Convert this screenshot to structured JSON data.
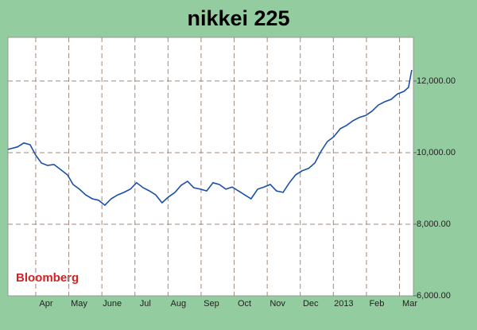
{
  "chart_data": {
    "type": "line",
    "title": "nikkei 225",
    "annotation": "Bloomberg",
    "x": [
      3.16,
      3.45,
      3.64,
      3.83,
      4.0,
      4.17,
      4.36,
      4.55,
      4.75,
      4.96,
      5.13,
      5.32,
      5.51,
      5.71,
      5.9,
      6.09,
      6.28,
      6.48,
      6.67,
      6.86,
      7.05,
      7.25,
      7.44,
      7.63,
      7.82,
      8.01,
      8.21,
      8.4,
      8.59,
      8.78,
      8.98,
      9.17,
      9.36,
      9.55,
      9.75,
      9.94,
      10.13,
      10.32,
      10.51,
      10.71,
      10.9,
      11.09,
      11.28,
      11.48,
      11.67,
      11.86,
      12.05,
      12.25,
      12.44,
      12.63,
      12.82,
      13.01,
      13.21,
      13.4,
      13.59,
      13.78,
      13.98,
      14.17,
      14.36,
      14.55,
      14.75,
      14.94,
      15.13,
      15.27,
      15.37
    ],
    "series": [
      {
        "name": "Nikkei 225",
        "color": "#1a4fa8",
        "values": [
          10090,
          10160,
          10270,
          10220,
          9930,
          9710,
          9640,
          9670,
          9530,
          9380,
          9110,
          8980,
          8820,
          8710,
          8670,
          8530,
          8710,
          8820,
          8890,
          8980,
          9160,
          9020,
          8930,
          8820,
          8600,
          8760,
          8890,
          9090,
          9200,
          9020,
          8980,
          8930,
          9160,
          9110,
          8980,
          9040,
          8930,
          8820,
          8710,
          8980,
          9040,
          9110,
          8930,
          8890,
          9160,
          9380,
          9490,
          9560,
          9710,
          10040,
          10310,
          10440,
          10670,
          10760,
          10890,
          10980,
          11040,
          11160,
          11330,
          11420,
          11490,
          11640,
          11710,
          11820,
          12310
        ]
      }
    ],
    "xlim": [
      3.16,
      15.42
    ],
    "xticks": [
      {
        "value": 4,
        "label": "Apr"
      },
      {
        "value": 5,
        "label": "May"
      },
      {
        "value": 6,
        "label": "June"
      },
      {
        "value": 7,
        "label": "Jul"
      },
      {
        "value": 8,
        "label": "Aug"
      },
      {
        "value": 9,
        "label": "Sep"
      },
      {
        "value": 10,
        "label": "Oct"
      },
      {
        "value": 11,
        "label": "Nov"
      },
      {
        "value": 12,
        "label": "Dec"
      },
      {
        "value": 13,
        "label": "2013"
      },
      {
        "value": 14,
        "label": "Feb"
      },
      {
        "value": 15,
        "label": "Mar"
      }
    ],
    "ylim": [
      6000,
      13220
    ],
    "yticks": [
      {
        "value": 6000,
        "label": "6,000.00"
      },
      {
        "value": 8000,
        "label": "8,000.00"
      },
      {
        "value": 10000,
        "label": "10,000.00"
      },
      {
        "value": 12000,
        "label": "12,000.00"
      }
    ],
    "grid": true
  }
}
